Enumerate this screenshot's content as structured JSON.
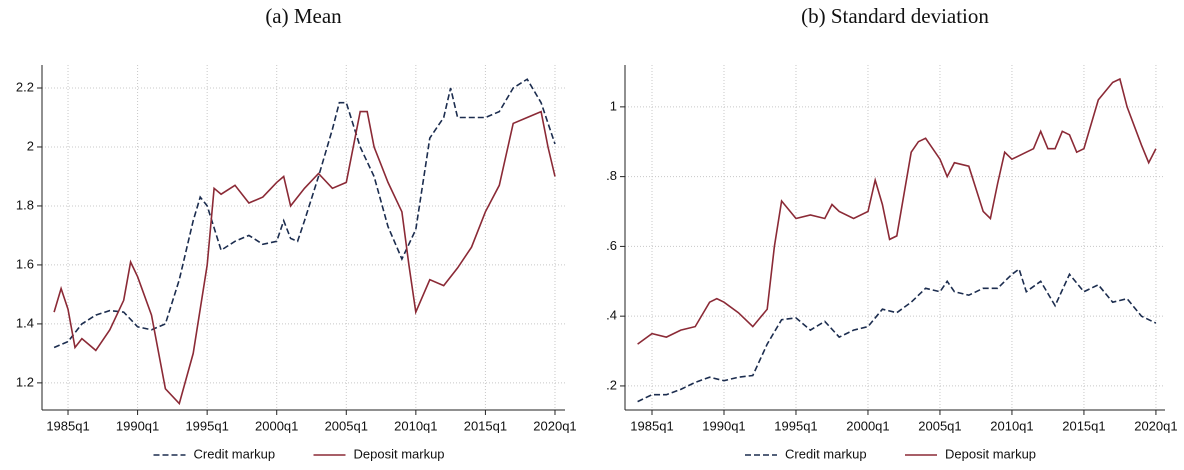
{
  "chart_data": [
    {
      "type": "line",
      "title": "(a) Mean",
      "xlim": [
        1983.13,
        2020.72
      ],
      "ylim": [
        1.108,
        2.278
      ],
      "xticks": [
        {
          "value": 1985,
          "label": "1985q1"
        },
        {
          "value": 1990,
          "label": "1990q1"
        },
        {
          "value": 1995,
          "label": "1995q1"
        },
        {
          "value": 2000,
          "label": "2000q1"
        },
        {
          "value": 2005,
          "label": "2005q1"
        },
        {
          "value": 2010,
          "label": "2010q1"
        },
        {
          "value": 2015,
          "label": "2015q1"
        },
        {
          "value": 2020,
          "label": "2020q1"
        }
      ],
      "yticks": [
        1.2,
        1.4,
        1.6,
        1.8,
        2,
        2.2
      ],
      "grid": true,
      "legend": "bottom",
      "series": [
        {
          "name": "Credit markup",
          "color": "#1c2d4f",
          "dash": true,
          "x": [
            1984,
            1985,
            1986,
            1987,
            1988,
            1989,
            1990,
            1991,
            1992,
            1993,
            1994,
            1994.5,
            1995,
            1996,
            1997,
            1998,
            1999,
            2000,
            2000.5,
            2001,
            2001.5,
            2002,
            2003,
            2004,
            2004.5,
            2005,
            2006,
            2007,
            2008,
            2009,
            2010,
            2011,
            2012,
            2012.5,
            2013,
            2014,
            2015,
            2016,
            2017,
            2018,
            2019,
            2020
          ],
          "values": [
            1.32,
            1.34,
            1.4,
            1.43,
            1.445,
            1.44,
            1.39,
            1.38,
            1.4,
            1.55,
            1.75,
            1.83,
            1.8,
            1.65,
            1.68,
            1.7,
            1.67,
            1.68,
            1.75,
            1.69,
            1.68,
            1.75,
            1.9,
            2.06,
            2.15,
            2.15,
            2.0,
            1.9,
            1.73,
            1.62,
            1.72,
            2.03,
            2.1,
            2.2,
            2.1,
            2.1,
            2.1,
            2.12,
            2.2,
            2.23,
            2.15,
            2.01
          ]
        },
        {
          "name": "Deposit markup",
          "color": "#8b2a36",
          "dash": false,
          "x": [
            1984,
            1984.5,
            1985,
            1985.5,
            1986,
            1987,
            1988,
            1989,
            1989.5,
            1990,
            1991,
            1992,
            1993,
            1994,
            1995,
            1995.5,
            1996,
            1997,
            1998,
            1999,
            2000,
            2000.5,
            2001,
            2002,
            2003,
            2004,
            2005,
            2006,
            2006.5,
            2007,
            2008,
            2009,
            2009.5,
            2010,
            2011,
            2012,
            2013,
            2014,
            2015,
            2016,
            2017,
            2018,
            2019,
            2019.5,
            2020
          ],
          "values": [
            1.44,
            1.52,
            1.45,
            1.32,
            1.35,
            1.31,
            1.38,
            1.48,
            1.61,
            1.56,
            1.43,
            1.18,
            1.13,
            1.3,
            1.6,
            1.86,
            1.84,
            1.87,
            1.81,
            1.83,
            1.88,
            1.9,
            1.8,
            1.86,
            1.91,
            1.86,
            1.88,
            2.12,
            2.12,
            2.0,
            1.88,
            1.78,
            1.6,
            1.44,
            1.55,
            1.53,
            1.59,
            1.66,
            1.78,
            1.87,
            2.08,
            2.1,
            2.12,
            2.0,
            1.9
          ]
        }
      ]
    },
    {
      "type": "line",
      "title": "(b) Standard deviation",
      "xlim": [
        1983.125,
        2020.63
      ],
      "ylim": [
        0.131,
        1.12
      ],
      "xticks": [
        {
          "value": 1985,
          "label": "1985q1"
        },
        {
          "value": 1990,
          "label": "1990q1"
        },
        {
          "value": 1995,
          "label": "1995q1"
        },
        {
          "value": 2000,
          "label": "2000q1"
        },
        {
          "value": 2005,
          "label": "2005q1"
        },
        {
          "value": 2010,
          "label": "2010q1"
        },
        {
          "value": 2015,
          "label": "2015q1"
        },
        {
          "value": 2020,
          "label": "2020q1"
        }
      ],
      "yticks": [
        {
          "value": 0.2,
          "label": ".2"
        },
        {
          "value": 0.4,
          "label": ".4"
        },
        {
          "value": 0.6,
          "label": ".6"
        },
        {
          "value": 0.8,
          "label": ".8"
        },
        1
      ],
      "grid": true,
      "legend": "bottom",
      "series": [
        {
          "name": "Credit markup",
          "color": "#1c2d4f",
          "dash": true,
          "x": [
            1984,
            1985,
            1986,
            1987,
            1988,
            1989,
            1990,
            1991,
            1992,
            1993,
            1994,
            1995,
            1996,
            1997,
            1998,
            1999,
            2000,
            2001,
            2002,
            2003,
            2004,
            2005,
            2005.5,
            2006,
            2007,
            2008,
            2009,
            2010,
            2010.5,
            2011,
            2012,
            2013,
            2014,
            2015,
            2016,
            2017,
            2018,
            2019,
            2020
          ],
          "values": [
            0.155,
            0.175,
            0.175,
            0.19,
            0.21,
            0.225,
            0.215,
            0.225,
            0.23,
            0.32,
            0.39,
            0.395,
            0.36,
            0.385,
            0.34,
            0.36,
            0.37,
            0.42,
            0.41,
            0.44,
            0.48,
            0.47,
            0.5,
            0.47,
            0.46,
            0.48,
            0.48,
            0.52,
            0.535,
            0.47,
            0.5,
            0.43,
            0.52,
            0.47,
            0.49,
            0.44,
            0.45,
            0.4,
            0.38
          ]
        },
        {
          "name": "Deposit markup",
          "color": "#8b2a36",
          "dash": false,
          "x": [
            1984,
            1985,
            1986,
            1987,
            1988,
            1989,
            1989.5,
            1990,
            1991,
            1992,
            1993,
            1993.5,
            1994,
            1995,
            1996,
            1997,
            1997.5,
            1998,
            1999,
            2000,
            2000.5,
            2001,
            2001.5,
            2002,
            2003,
            2003.5,
            2004,
            2005,
            2005.5,
            2006,
            2007,
            2008,
            2008.5,
            2009,
            2009.5,
            2010,
            2011,
            2011.5,
            2012,
            2012.5,
            2013,
            2013.5,
            2014,
            2014.5,
            2015,
            2016,
            2017,
            2017.5,
            2018,
            2019,
            2019.5,
            2020
          ],
          "values": [
            0.32,
            0.35,
            0.34,
            0.36,
            0.37,
            0.44,
            0.45,
            0.44,
            0.41,
            0.37,
            0.42,
            0.6,
            0.73,
            0.68,
            0.69,
            0.68,
            0.72,
            0.7,
            0.68,
            0.7,
            0.79,
            0.72,
            0.62,
            0.63,
            0.87,
            0.9,
            0.91,
            0.85,
            0.8,
            0.84,
            0.83,
            0.7,
            0.68,
            0.78,
            0.87,
            0.85,
            0.87,
            0.88,
            0.93,
            0.88,
            0.88,
            0.93,
            0.92,
            0.87,
            0.88,
            1.02,
            1.07,
            1.08,
            1.0,
            0.89,
            0.84,
            0.88
          ]
        }
      ]
    }
  ]
}
